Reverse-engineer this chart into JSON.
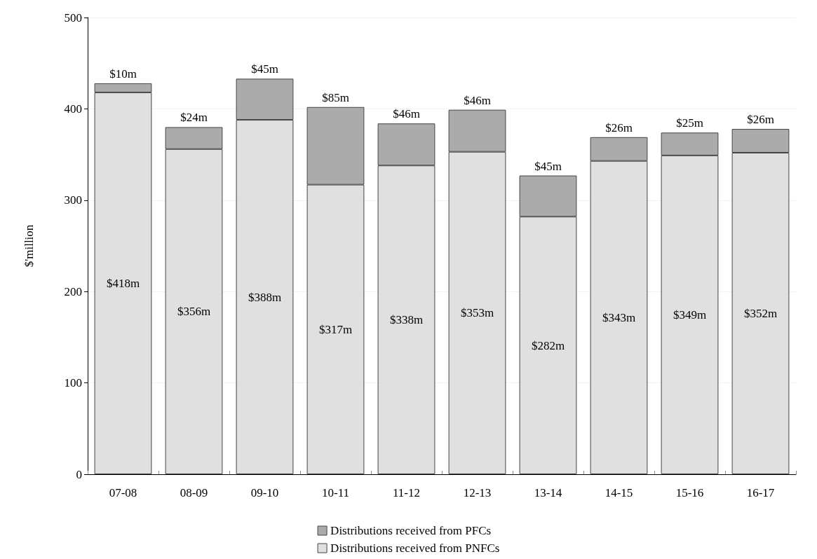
{
  "chart_data": {
    "type": "bar",
    "ylabel": "$'million",
    "stacked": true,
    "categories": [
      "07-08",
      "08-09",
      "09-10",
      "10-11",
      "11-12",
      "12-13",
      "13-14",
      "14-15",
      "15-16",
      "16-17"
    ],
    "series": [
      {
        "name": "Distributions received from PNFCs",
        "color": "#e0e0e0",
        "values": [
          418,
          356,
          388,
          317,
          338,
          353,
          282,
          343,
          349,
          352
        ],
        "value_labels": [
          "$418m",
          "$356m",
          "$388m",
          "$317m",
          "$338m",
          "$353m",
          "$282m",
          "$343m",
          "$349m",
          "$352m"
        ]
      },
      {
        "name": "Distributions received from PFCs",
        "color": "#ababab",
        "values": [
          10,
          24,
          45,
          85,
          46,
          46,
          45,
          26,
          25,
          26
        ],
        "value_labels": [
          "$10m",
          "$24m",
          "$45m",
          "$85m",
          "$46m",
          "$46m",
          "$45m",
          "$26m",
          "$25m",
          "$26m"
        ]
      }
    ],
    "ylim": [
      0,
      500
    ],
    "yticks": [
      0,
      100,
      200,
      300,
      400,
      500
    ],
    "grid": "y",
    "legend": "bottom"
  }
}
